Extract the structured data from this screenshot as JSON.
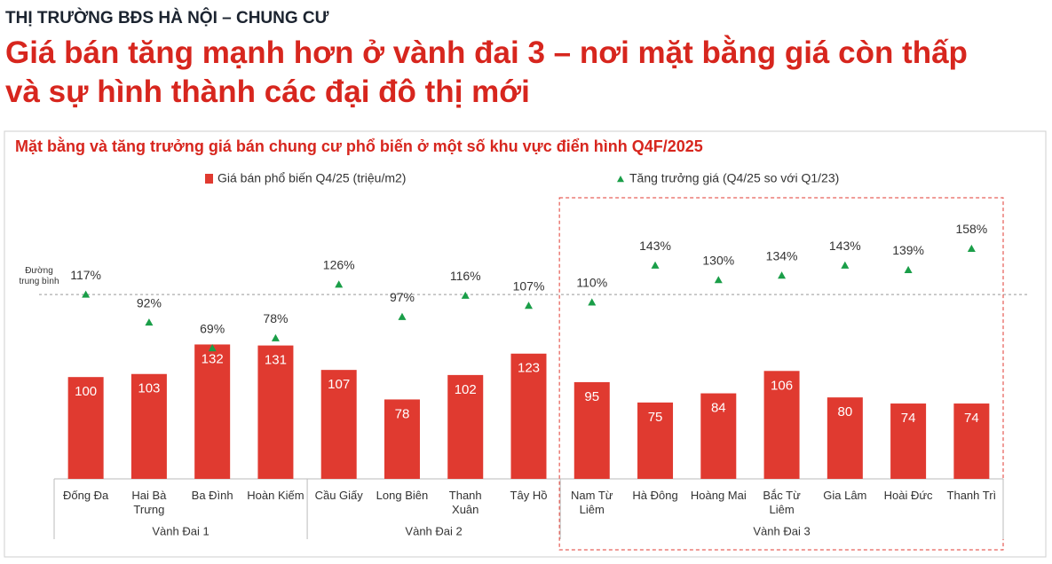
{
  "header": {
    "kicker": "THỊ TRƯỜNG BĐS HÀ NỘI – CHUNG CƯ",
    "title": "Giá bán tăng mạnh hơn ở vành đai 3 – nơi mặt bằng giá còn thấp và sự hình thành các đại đô thị mới"
  },
  "chart_data": {
    "type": "bar",
    "title": "Mặt bằng và tăng trưởng giá bán chung cư phổ biến ở một số khu vực điển hình Q4F/2025",
    "categories": [
      "Đống Đa",
      "Hai Bà Trưng",
      "Ba Đình",
      "Hoàn Kiếm",
      "Cầu Giấy",
      "Long Biên",
      "Thanh Xuân",
      "Tây Hồ",
      "Nam Từ Liêm",
      "Hà Đông",
      "Hoàng Mai",
      "Bắc Từ Liêm",
      "Gia Lâm",
      "Hoài Đức",
      "Thanh Trì"
    ],
    "series": [
      {
        "name": "Giá bán phổ biến Q4/25 (triệu/m2)",
        "type": "bar",
        "color": "#e03a30",
        "values": [
          100,
          103,
          132,
          131,
          107,
          78,
          102,
          123,
          95,
          75,
          84,
          106,
          80,
          74,
          74
        ]
      },
      {
        "name": "Tăng trưởng giá (Q4/25 so với Q1/23)",
        "type": "scatter",
        "marker": "triangle",
        "axis": "y2",
        "color": "#1a9e48",
        "values": [
          117,
          92,
          69,
          78,
          126,
          97,
          116,
          107,
          110,
          143,
          130,
          134,
          143,
          139,
          158
        ],
        "value_labels": [
          "117%",
          "92%",
          "69%",
          "78%",
          "126%",
          "97%",
          "116%",
          "107%",
          "110%",
          "143%",
          "130%",
          "134%",
          "143%",
          "139%",
          "158%"
        ]
      }
    ],
    "groups": [
      {
        "label": "Vành Đai 1",
        "count": 4
      },
      {
        "label": "Vành Đai 2",
        "count": 4
      },
      {
        "label": "Vành Đai 3",
        "count": 7
      }
    ],
    "highlight_group": 2,
    "reference_line": {
      "label": "Đường trung bình",
      "value": 117,
      "axis": "y2"
    },
    "ylim": [
      0,
      270
    ],
    "y2lim": [
      -48,
      198
    ]
  }
}
